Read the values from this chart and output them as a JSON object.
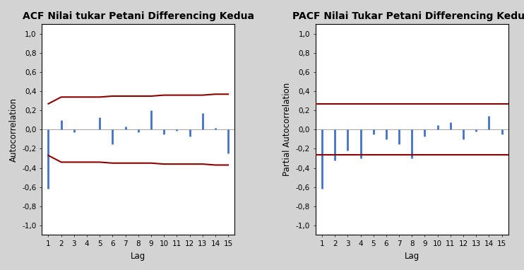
{
  "acf_title": "ACF Nilai tukar Petani Differencing Kedua",
  "pacf_title": "PACF Nilai Tukar Petani Differencing Kedua",
  "acf_ylabel": "Autocorrelation",
  "pacf_ylabel": "Partial Autocorrelation",
  "xlabel": "Lag",
  "lags": [
    1,
    2,
    3,
    4,
    5,
    6,
    7,
    8,
    9,
    10,
    11,
    12,
    13,
    14,
    15
  ],
  "acf_values": [
    -0.62,
    0.1,
    -0.03,
    0.0,
    0.13,
    -0.15,
    0.03,
    -0.03,
    0.2,
    -0.05,
    -0.01,
    -0.07,
    0.17,
    0.02,
    -0.25
  ],
  "pacf_values": [
    -0.62,
    -0.32,
    -0.22,
    -0.3,
    -0.05,
    -0.1,
    -0.15,
    -0.3,
    -0.07,
    0.05,
    0.08,
    -0.1,
    -0.02,
    0.14,
    -0.05
  ],
  "acf_upper_ci": [
    0.27,
    0.34,
    0.34,
    0.34,
    0.34,
    0.35,
    0.35,
    0.35,
    0.35,
    0.36,
    0.36,
    0.36,
    0.36,
    0.37,
    0.37
  ],
  "acf_lower_ci": [
    -0.27,
    -0.34,
    -0.34,
    -0.34,
    -0.34,
    -0.35,
    -0.35,
    -0.35,
    -0.35,
    -0.36,
    -0.36,
    -0.36,
    -0.36,
    -0.37,
    -0.37
  ],
  "pacf_upper_ci": 0.265,
  "pacf_lower_ci": -0.265,
  "bar_color": "#4472C4",
  "ci_color": "#8B0000",
  "background_color": "#D3D3D3",
  "plot_bg_color": "#FFFFFF",
  "ylim": [
    -1.1,
    1.1
  ],
  "yticks": [
    -1.0,
    -0.8,
    -0.6,
    -0.4,
    -0.2,
    0.0,
    0.2,
    0.4,
    0.6,
    0.8,
    1.0
  ],
  "title_fontsize": 10,
  "axis_label_fontsize": 8.5,
  "tick_fontsize": 7.5
}
